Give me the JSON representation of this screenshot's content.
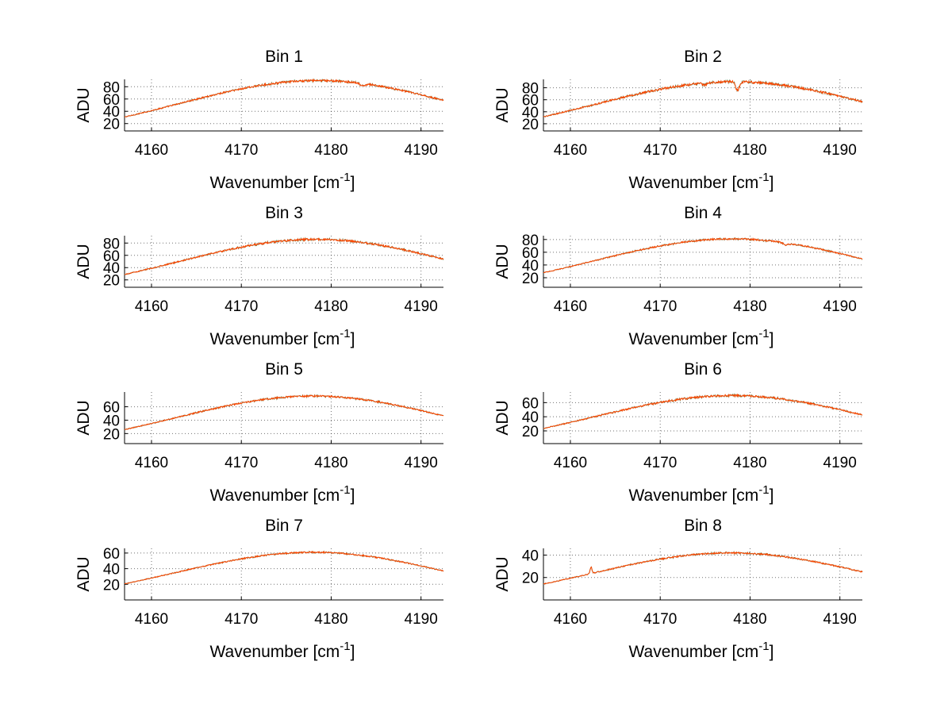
{
  "colors": {
    "trace_primary": "#ff4500",
    "trace_secondary": "#2e8b57",
    "axes": "#000000"
  },
  "chart_data": [
    {
      "type": "line",
      "title": "Bin 1",
      "xlabel": "Wavenumber [cm",
      "xlabel_sup": "-1",
      "xlabel_end": "]",
      "ylabel": "ADU",
      "xlim": [
        4157,
        4192.5
      ],
      "ylim": [
        8,
        92
      ],
      "xticks": [
        4160,
        4170,
        4180,
        4190
      ],
      "yticks": [
        20,
        40,
        60,
        80
      ],
      "peak_x": 4178.5,
      "peak_y": 90,
      "width": 15.5,
      "floor": -6,
      "noise": 1.6,
      "features": [
        {
          "x": 4183.5,
          "depth": 4,
          "w": 0.25
        }
      ]
    },
    {
      "type": "line",
      "title": "Bin 2",
      "xlabel": "Wavenumber [cm",
      "xlabel_sup": "-1",
      "xlabel_end": "]",
      "ylabel": "ADU",
      "xlim": [
        4157,
        4192.5
      ],
      "ylim": [
        8,
        94
      ],
      "xticks": [
        4160,
        4170,
        4180,
        4190
      ],
      "yticks": [
        20,
        40,
        60,
        80
      ],
      "peak_x": 4178.2,
      "peak_y": 90,
      "width": 15.5,
      "floor": -6,
      "noise": 2.0,
      "features": [
        {
          "x": 4178.6,
          "depth": 14,
          "w": 0.2
        },
        {
          "x": 4175.0,
          "depth": 3,
          "w": 0.3
        }
      ]
    },
    {
      "type": "line",
      "title": "Bin 3",
      "xlabel": "Wavenumber [cm",
      "xlabel_sup": "-1",
      "xlabel_end": "]",
      "ylabel": "ADU",
      "xlim": [
        4157,
        4192.5
      ],
      "ylim": [
        8,
        92
      ],
      "xticks": [
        4160,
        4170,
        4180,
        4190
      ],
      "yticks": [
        20,
        40,
        60,
        80
      ],
      "peak_x": 4178.3,
      "peak_y": 86,
      "width": 15.3,
      "floor": -6,
      "noise": 1.6,
      "features": []
    },
    {
      "type": "line",
      "title": "Bin 4",
      "xlabel": "Wavenumber [cm",
      "xlabel_sup": "-1",
      "xlabel_end": "]",
      "ylabel": "ADU",
      "xlim": [
        4157,
        4192.5
      ],
      "ylim": [
        5,
        86
      ],
      "xticks": [
        4160,
        4170,
        4180,
        4190
      ],
      "yticks": [
        20,
        40,
        60,
        80
      ],
      "peak_x": 4178.0,
      "peak_y": 81,
      "width": 15.3,
      "floor": -6,
      "noise": 1.3,
      "features": [
        {
          "x": 4184.0,
          "depth": 3,
          "w": 0.3
        }
      ]
    },
    {
      "type": "line",
      "title": "Bin 5",
      "xlabel": "Wavenumber [cm",
      "xlabel_sup": "-1",
      "xlabel_end": "]",
      "ylabel": "ADU",
      "xlim": [
        4157,
        4192.5
      ],
      "ylim": [
        5,
        82
      ],
      "xticks": [
        4160,
        4170,
        4180,
        4190
      ],
      "yticks": [
        20,
        40,
        60
      ],
      "peak_x": 4178.0,
      "peak_y": 76,
      "width": 15.3,
      "floor": -6,
      "noise": 1.3,
      "features": []
    },
    {
      "type": "line",
      "title": "Bin 6",
      "xlabel": "Wavenumber [cm",
      "xlabel_sup": "-1",
      "xlabel_end": "]",
      "ylabel": "ADU",
      "xlim": [
        4157,
        4192.5
      ],
      "ylim": [
        2,
        75
      ],
      "xticks": [
        4160,
        4170,
        4180,
        4190
      ],
      "yticks": [
        20,
        40,
        60
      ],
      "peak_x": 4178.0,
      "peak_y": 70,
      "width": 15.3,
      "floor": -6,
      "noise": 1.4,
      "features": []
    },
    {
      "type": "line",
      "title": "Bin 7",
      "xlabel": "Wavenumber [cm",
      "xlabel_sup": "-1",
      "xlabel_end": "]",
      "ylabel": "ADU",
      "xlim": [
        4157,
        4192.5
      ],
      "ylim": [
        0,
        66
      ],
      "xticks": [
        4160,
        4170,
        4180,
        4190
      ],
      "yticks": [
        20,
        40,
        60
      ],
      "peak_x": 4178.0,
      "peak_y": 61,
      "width": 15.3,
      "floor": -5,
      "noise": 0.9,
      "features": []
    },
    {
      "type": "line",
      "title": "Bin 8",
      "xlabel": "Wavenumber [cm",
      "xlabel_sup": "-1",
      "xlabel_end": "]",
      "ylabel": "ADU",
      "xlim": [
        4157,
        4192.5
      ],
      "ylim": [
        0,
        46
      ],
      "xticks": [
        4160,
        4170,
        4180,
        4190
      ],
      "yticks": [
        20,
        40
      ],
      "peak_x": 4177.8,
      "peak_y": 42,
      "width": 15.3,
      "floor": -4,
      "noise": 0.7,
      "features": [
        {
          "x": 4162.3,
          "depth": -6,
          "w": 0.1
        }
      ]
    }
  ]
}
